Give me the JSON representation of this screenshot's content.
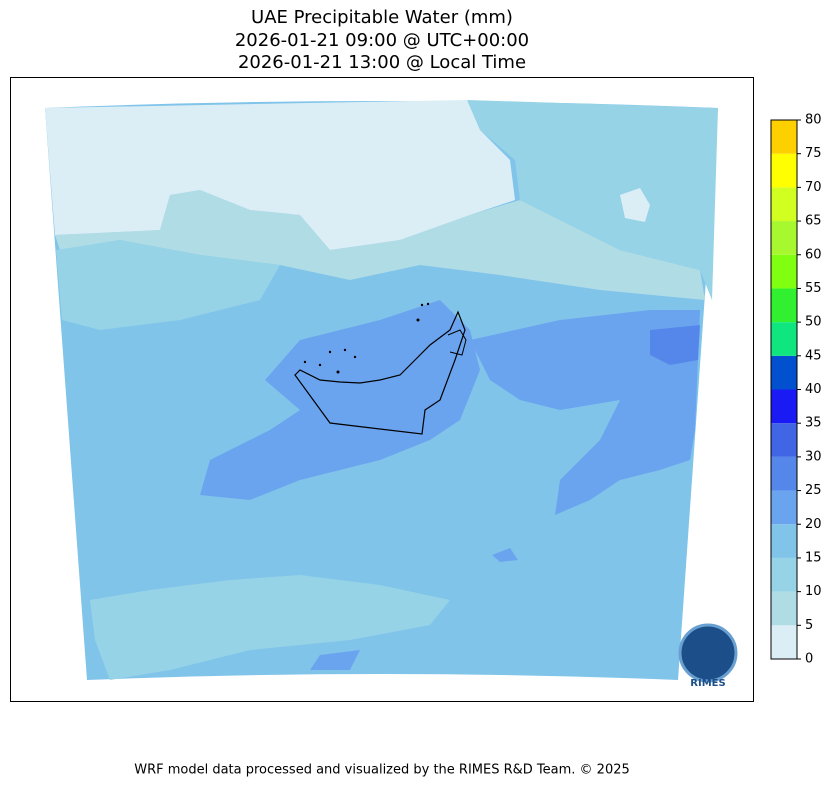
{
  "chart_data": {
    "type": "colorbar-map",
    "title": [
      "UAE Precipitable Water (mm)",
      "2026-01-21 09:00 @ UTC+00:00",
      "2026-01-21 13:00 @ Local Time"
    ],
    "clim": [
      0,
      80
    ],
    "cticks": [
      0,
      5,
      10,
      15,
      20,
      25,
      30,
      35,
      40,
      45,
      50,
      55,
      60,
      65,
      70,
      75,
      80
    ],
    "colors": [
      "#dbeef5",
      "#b0dce6",
      "#96d3e6",
      "#80c4ea",
      "#6aa4ef",
      "#5587eb",
      "#4066e6",
      "#1a1af5",
      "#0050d0",
      "#10e680",
      "#30f030",
      "#80ff10",
      "#a8f830",
      "#d0ff20",
      "#ffff00",
      "#ffd000"
    ],
    "logo": "RIMES",
    "footer": "WRF model data processed and visualized by the RIMES R&D Team. © 2025"
  }
}
